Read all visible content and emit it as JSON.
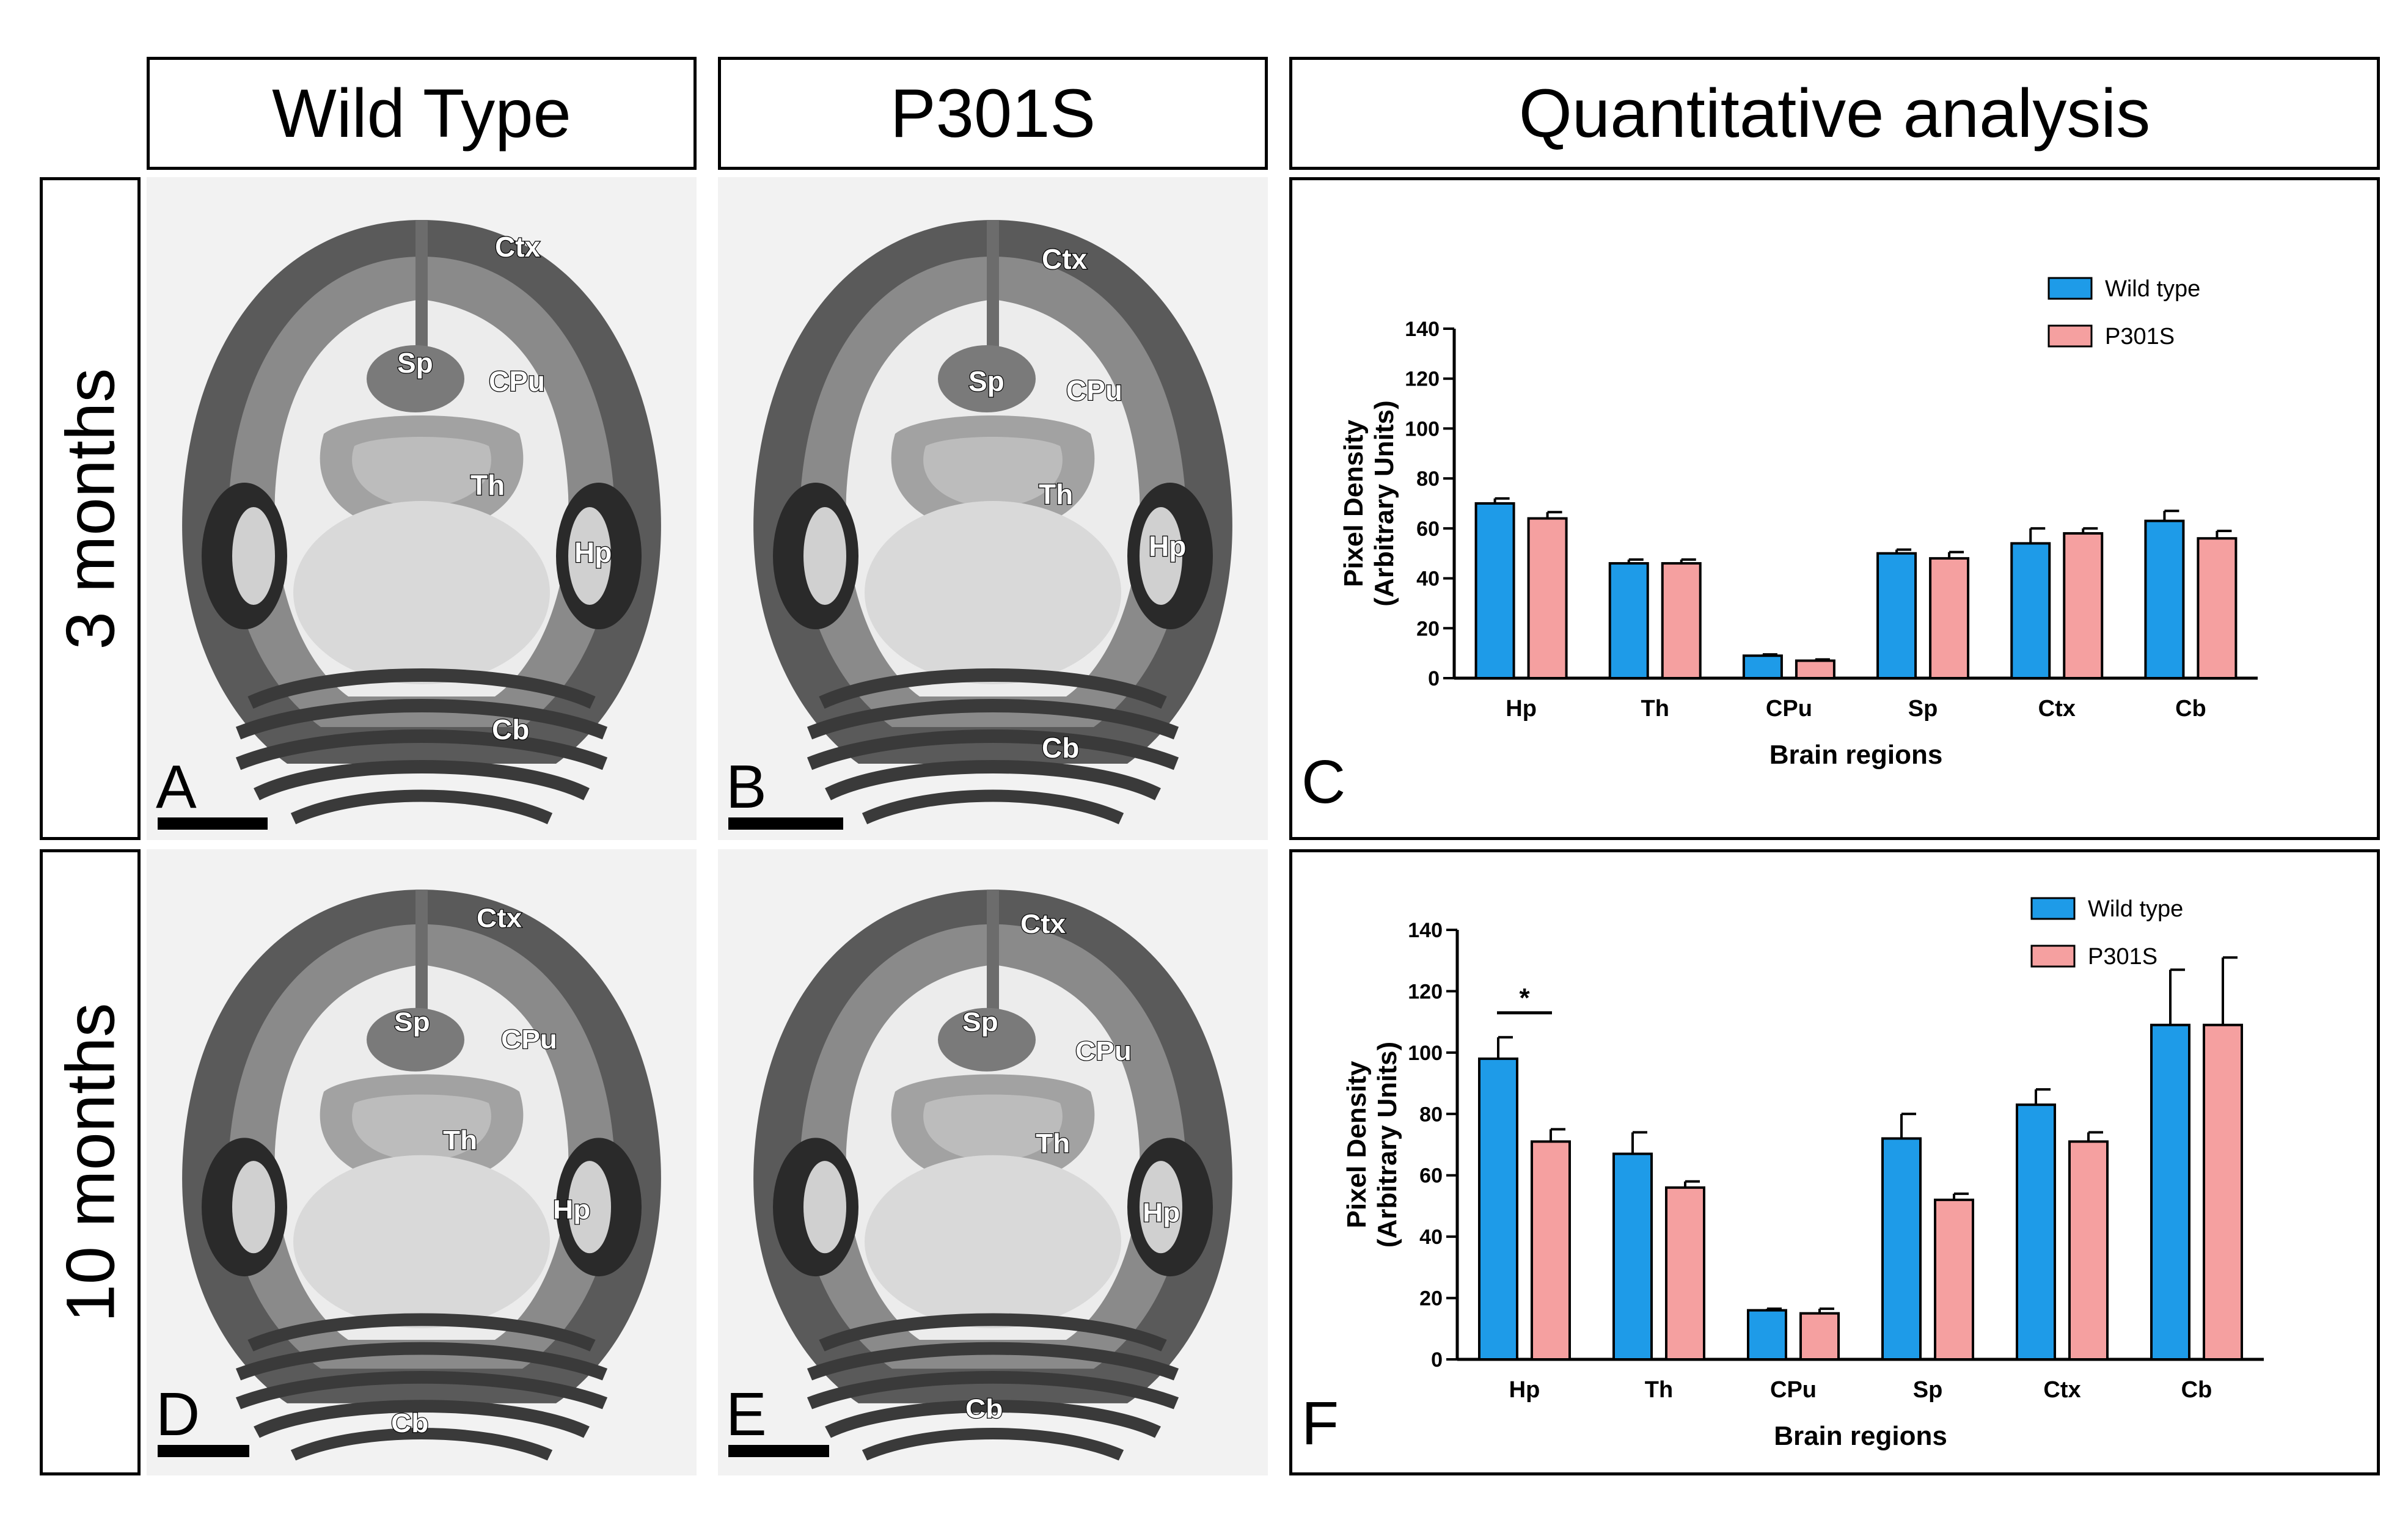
{
  "headers": {
    "wild_type": "Wild Type",
    "p301s": "P301S",
    "quant": "Quantitative analysis"
  },
  "row_labels": {
    "row1": "3 months",
    "row2": "10 months"
  },
  "panel_labels": {
    "A": "A",
    "B": "B",
    "C": "C",
    "D": "D",
    "E": "E",
    "F": "F"
  },
  "region_labels": {
    "ctx": "Ctx",
    "sp": "Sp",
    "cpu": "CPu",
    "th": "Th",
    "hp": "Hp",
    "cb": "Cb"
  },
  "colors": {
    "wild_type": "#1e9be8",
    "p301s": "#f5a0a0",
    "frame": "#000000"
  },
  "chart_data": [
    {
      "type": "bar",
      "panel": "C",
      "categories": [
        "Hp",
        "Th",
        "CPu",
        "Sp",
        "Ctx",
        "Cb"
      ],
      "series": [
        {
          "name": "Wild type",
          "values": [
            70,
            46,
            9,
            50,
            54,
            63
          ],
          "errors": [
            2,
            1.5,
            0.5,
            1.5,
            6,
            4
          ]
        },
        {
          "name": "P301S",
          "values": [
            64,
            46,
            7,
            48,
            58,
            56
          ],
          "errors": [
            2.5,
            1.5,
            0.5,
            2.5,
            2,
            3
          ]
        }
      ],
      "xlabel": "Brain regions",
      "ylabel_line1": "Pixel Density",
      "ylabel_line2": "(Arbitrary Units)",
      "ylim": [
        0,
        140
      ],
      "yticks": [
        0,
        20,
        40,
        60,
        80,
        100,
        120,
        140
      ],
      "legend_position": "top-right",
      "annotations": []
    },
    {
      "type": "bar",
      "panel": "F",
      "categories": [
        "Hp",
        "Th",
        "CPu",
        "Sp",
        "Ctx",
        "Cb"
      ],
      "series": [
        {
          "name": "Wild type",
          "values": [
            98,
            67,
            16,
            72,
            83,
            109
          ],
          "errors": [
            7,
            7,
            0.5,
            8,
            5,
            18
          ]
        },
        {
          "name": "P301S",
          "values": [
            71,
            56,
            15,
            52,
            71,
            109
          ],
          "errors": [
            4,
            2,
            1.5,
            2,
            3,
            22
          ]
        }
      ],
      "xlabel": "Brain regions",
      "ylabel_line1": "Pixel Density",
      "ylabel_line2": "(Arbitrary Units)",
      "ylim": [
        0,
        140
      ],
      "yticks": [
        0,
        20,
        40,
        60,
        80,
        100,
        120,
        140
      ],
      "legend_position": "top-right",
      "annotations": [
        {
          "category": "Hp",
          "text": "*"
        }
      ]
    }
  ]
}
